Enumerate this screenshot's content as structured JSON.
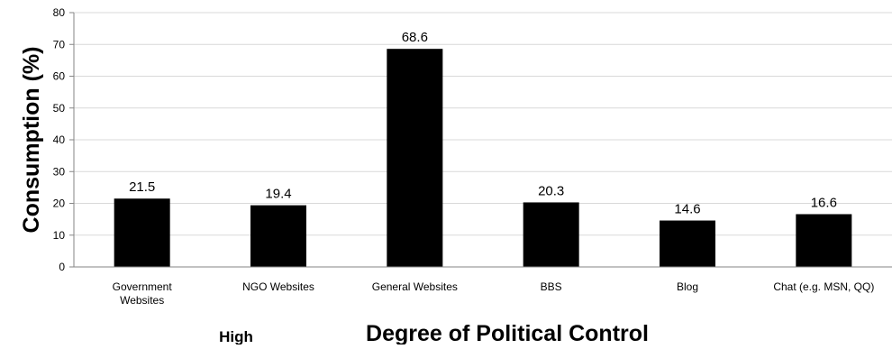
{
  "chart_data": {
    "type": "bar",
    "categories": [
      "Government Websites",
      "NGO Websites",
      "General Websites",
      "BBS",
      "Blog",
      "Chat (e.g. MSN, QQ)"
    ],
    "category_lines": [
      [
        "Government",
        "Websites"
      ],
      [
        "NGO Websites"
      ],
      [
        "General Websites"
      ],
      [
        "BBS"
      ],
      [
        "Blog"
      ],
      [
        "Chat (e.g. MSN, QQ)"
      ]
    ],
    "values": [
      21.5,
      19.4,
      68.6,
      20.3,
      14.6,
      16.6
    ],
    "data_labels": [
      "21.5",
      "19.4",
      "68.6",
      "20.3",
      "14.6",
      "16.6"
    ],
    "ylabel": "Consumption (%)",
    "xlabel": "Degree of Political Control",
    "x_annotation": "High",
    "ylim": [
      0,
      80
    ],
    "yticks": [
      0,
      10,
      20,
      30,
      40,
      50,
      60,
      70,
      80
    ],
    "grid": true,
    "bar_color": "#000000",
    "grid_color": "#d9d9d9",
    "axis_color": "#868686"
  }
}
